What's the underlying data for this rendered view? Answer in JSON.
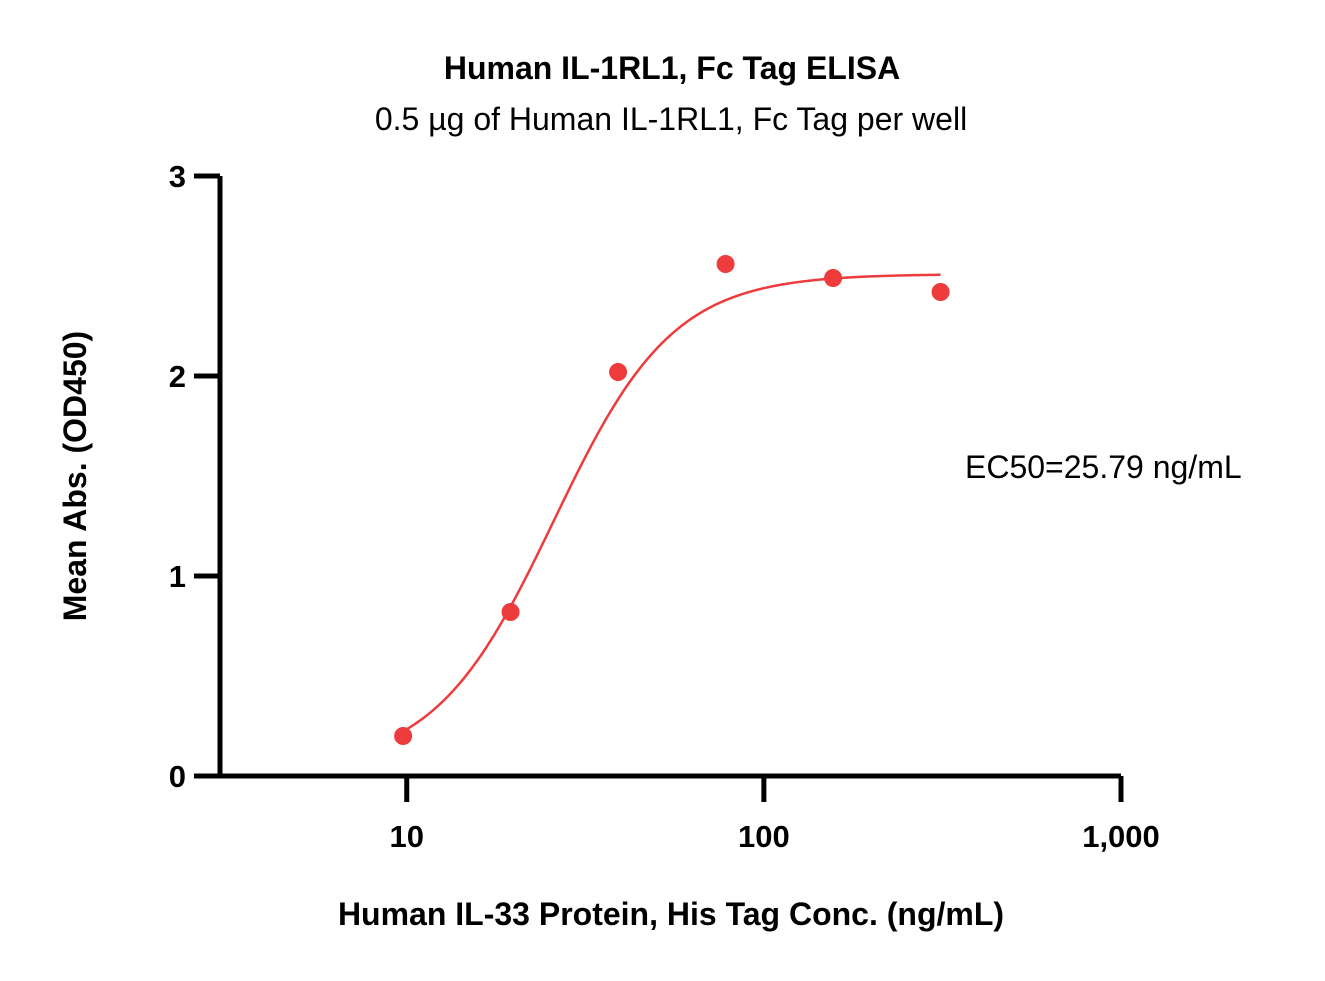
{
  "chart_data": {
    "type": "scatter",
    "title": "Human IL-1RL1, Fc Tag ELISA",
    "subtitle": "0.5 µg of Human IL-1RL1, Fc Tag per well",
    "xlabel": "Human IL-33 Protein, His Tag Conc. (ng/mL)",
    "ylabel": "Mean Abs. (OD450)",
    "x_scale": "log",
    "xlim": [
      3,
      1000
    ],
    "ylim": [
      0,
      3
    ],
    "x_ticks": [
      10,
      100,
      1000
    ],
    "x_tick_labels": [
      "10",
      "100",
      "1,000"
    ],
    "y_ticks": [
      0,
      1,
      2,
      3
    ],
    "y_tick_labels": [
      "0",
      "1",
      "2",
      "3"
    ],
    "grid": false,
    "series": [
      {
        "x": [
          9.77,
          19.53,
          39.06,
          78.13,
          156.25,
          312.5
        ],
        "y": [
          0.2,
          0.82,
          2.02,
          2.56,
          2.49,
          2.42
        ],
        "color": "#ee3b3b",
        "marker": "circle",
        "fit": {
          "model": "4PL",
          "bottom": 0.04,
          "top": 2.51,
          "ec50": 25.79,
          "hill": 2.6,
          "x_range": [
            9.77,
            312.5
          ]
        }
      }
    ],
    "annotations": [
      {
        "text": "EC50=25.79 ng/mL"
      }
    ]
  }
}
